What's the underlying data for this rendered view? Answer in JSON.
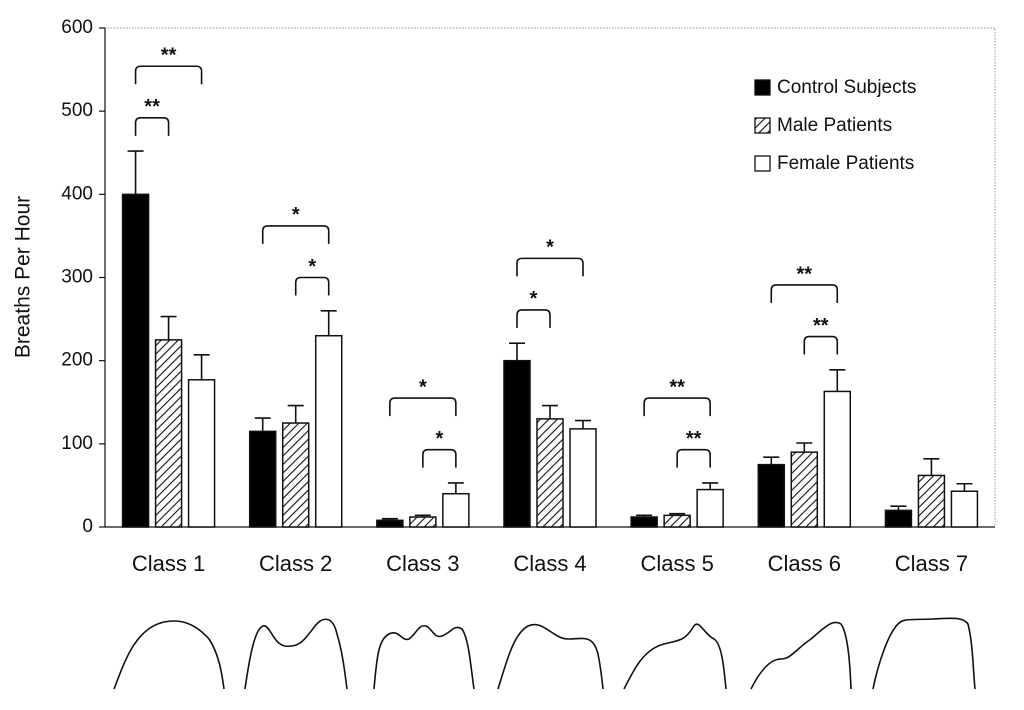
{
  "chart_data": {
    "type": "bar",
    "y_label": "Breaths Per Hour",
    "categories": [
      "Class 1",
      "Class 2",
      "Class 3",
      "Class 4",
      "Class 5",
      "Class 6",
      "Class 7"
    ],
    "series": [
      {
        "name": "Control Subjects",
        "color": "#000000",
        "values": [
          400,
          115,
          8,
          200,
          12,
          75,
          20
        ],
        "errors": [
          52,
          16,
          2,
          21,
          2,
          9,
          5
        ]
      },
      {
        "name": "Male Patients",
        "color": "#ffffff",
        "pattern": "hatch",
        "values": [
          225,
          125,
          12,
          130,
          14,
          90,
          62
        ],
        "errors": [
          28,
          21,
          2,
          16,
          2,
          11,
          20
        ]
      },
      {
        "name": "Female Patients",
        "color": "#ffffff",
        "values": [
          177,
          230,
          40,
          118,
          45,
          163,
          43
        ],
        "errors": [
          30,
          30,
          13,
          10,
          8,
          26,
          9
        ]
      }
    ],
    "annotations": [
      {
        "text": "**",
        "category": 0,
        "from": 0,
        "to": 1
      },
      {
        "text": "**",
        "category": 0,
        "from": 0,
        "to": 2
      },
      {
        "text": "*",
        "category": 1,
        "from": 1,
        "to": 2
      },
      {
        "text": "*",
        "category": 1,
        "from": 0,
        "to": 2
      },
      {
        "text": "*",
        "category": 2,
        "from": 1,
        "to": 2
      },
      {
        "text": "*",
        "category": 2,
        "from": 0,
        "to": 2
      },
      {
        "text": "*",
        "category": 3,
        "from": 0,
        "to": 1
      },
      {
        "text": "*",
        "category": 3,
        "from": 0,
        "to": 2
      },
      {
        "text": "**",
        "category": 4,
        "from": 1,
        "to": 2
      },
      {
        "text": "**",
        "category": 4,
        "from": 0,
        "to": 2
      },
      {
        "text": "**",
        "category": 5,
        "from": 1,
        "to": 2
      },
      {
        "text": "**",
        "category": 5,
        "from": 0,
        "to": 2
      }
    ],
    "ylim": [
      0,
      600
    ],
    "yticks": [
      0,
      100,
      200,
      300,
      400,
      500,
      600
    ],
    "legend": "upper right"
  }
}
